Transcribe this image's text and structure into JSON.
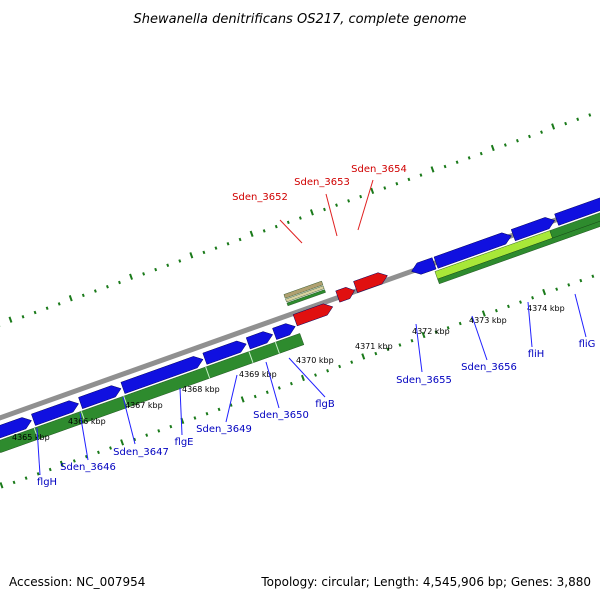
{
  "title": "Shewanella denitrificans OS217, complete genome",
  "footer": {
    "accession": "Accession: NC_007954",
    "summary": "Topology: circular; Length: 4,545,906 bp; Genes: 3,880"
  },
  "colors": {
    "cds_forward": "#1010e0",
    "cds_other": "#e01010",
    "rna_band": "#b0a070",
    "gc_positive": "#2e8b2e",
    "gc_highlight": "#a8e838",
    "backbone": "#909090",
    "tick": "#1a7a1a",
    "label_blue": "#0000c0",
    "label_red": "#d00000"
  },
  "ticks": [
    {
      "label": "4365 kbp"
    },
    {
      "label": "4366 kbp"
    },
    {
      "label": "4367 kbp"
    },
    {
      "label": "4368 kbp"
    },
    {
      "label": "4369 kbp"
    },
    {
      "label": "4370 kbp"
    },
    {
      "label": "4371 kbp"
    },
    {
      "label": "4372 kbp"
    },
    {
      "label": "4373 kbp"
    },
    {
      "label": "4374 kbp"
    }
  ],
  "genes_bottom": [
    {
      "name": "flgH"
    },
    {
      "name": "Sden_3646"
    },
    {
      "name": "Sden_3647"
    },
    {
      "name": "flgE"
    },
    {
      "name": "Sden_3649"
    },
    {
      "name": "Sden_3650"
    },
    {
      "name": "flgB"
    },
    {
      "name": "Sden_3655"
    },
    {
      "name": "Sden_3656"
    },
    {
      "name": "fliH"
    },
    {
      "name": "fliG"
    }
  ],
  "genes_top": [
    {
      "name": "Sden_3652"
    },
    {
      "name": "Sden_3653"
    },
    {
      "name": "Sden_3654"
    }
  ]
}
